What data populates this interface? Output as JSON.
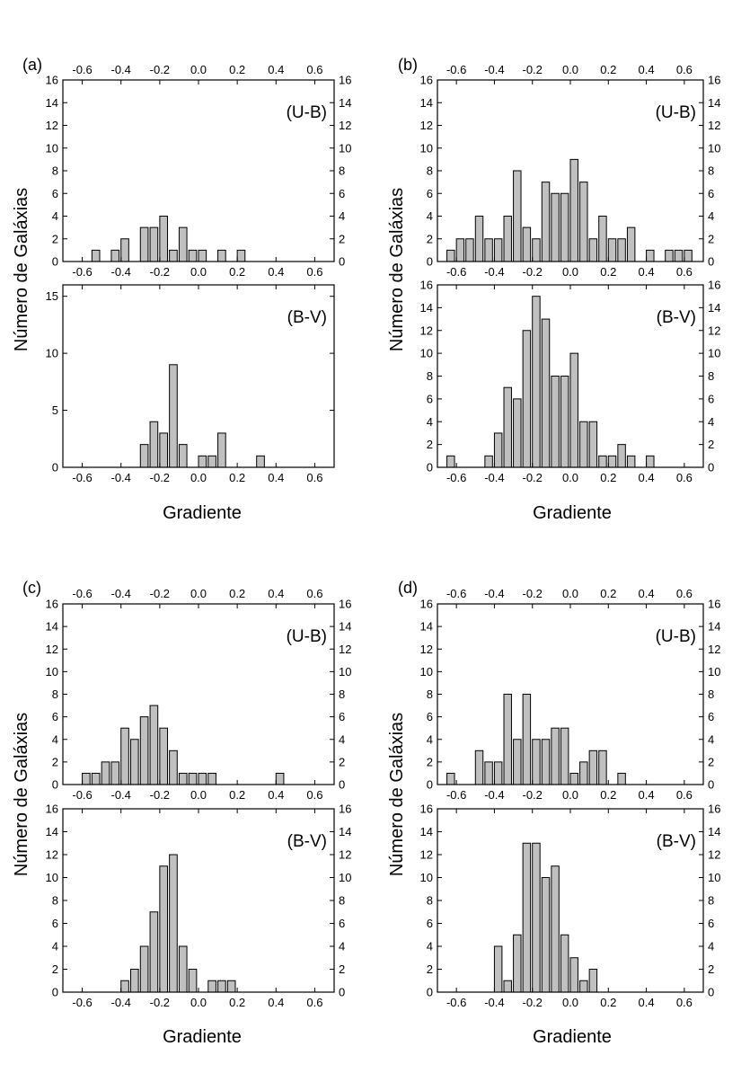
{
  "chart_data": [
    {
      "panel": "(a)",
      "type": "bar",
      "ylabel": "Número de Galáxias",
      "xlabel": "Gradiente",
      "subplots": [
        {
          "label": "(U-B)",
          "ylim": [
            0,
            16
          ],
          "yticks": [
            0,
            2,
            4,
            6,
            8,
            10,
            12,
            14,
            16
          ],
          "bars": [
            {
              "x": -0.53,
              "v": 1
            },
            {
              "x": -0.43,
              "v": 1
            },
            {
              "x": -0.38,
              "v": 2
            },
            {
              "x": -0.28,
              "v": 3
            },
            {
              "x": -0.23,
              "v": 3
            },
            {
              "x": -0.18,
              "v": 4
            },
            {
              "x": -0.13,
              "v": 1
            },
            {
              "x": -0.08,
              "v": 3
            },
            {
              "x": -0.03,
              "v": 1
            },
            {
              "x": 0.02,
              "v": 1
            },
            {
              "x": 0.12,
              "v": 1
            },
            {
              "x": 0.22,
              "v": 1
            }
          ]
        },
        {
          "label": "(B-V)",
          "ylim": [
            0,
            16
          ],
          "yticks": [
            0,
            5,
            10,
            15
          ],
          "bars": [
            {
              "x": -0.28,
              "v": 2
            },
            {
              "x": -0.23,
              "v": 4
            },
            {
              "x": -0.18,
              "v": 3
            },
            {
              "x": -0.13,
              "v": 9
            },
            {
              "x": -0.08,
              "v": 2
            },
            {
              "x": 0.02,
              "v": 1
            },
            {
              "x": 0.07,
              "v": 1
            },
            {
              "x": 0.12,
              "v": 3
            },
            {
              "x": 0.32,
              "v": 1
            }
          ]
        }
      ]
    },
    {
      "panel": "(b)",
      "type": "bar",
      "ylabel": "Número de Galáxias",
      "xlabel": "Gradiente",
      "subplots": [
        {
          "label": "(U-B)",
          "ylim": [
            0,
            16
          ],
          "yticks": [
            0,
            2,
            4,
            6,
            8,
            10,
            12,
            14,
            16
          ],
          "bars": [
            {
              "x": -0.63,
              "v": 1
            },
            {
              "x": -0.58,
              "v": 2
            },
            {
              "x": -0.53,
              "v": 2
            },
            {
              "x": -0.48,
              "v": 4
            },
            {
              "x": -0.43,
              "v": 2
            },
            {
              "x": -0.38,
              "v": 2
            },
            {
              "x": -0.33,
              "v": 4
            },
            {
              "x": -0.28,
              "v": 8
            },
            {
              "x": -0.23,
              "v": 3
            },
            {
              "x": -0.18,
              "v": 2
            },
            {
              "x": -0.13,
              "v": 7
            },
            {
              "x": -0.08,
              "v": 6
            },
            {
              "x": -0.03,
              "v": 6
            },
            {
              "x": 0.02,
              "v": 9
            },
            {
              "x": 0.07,
              "v": 7
            },
            {
              "x": 0.12,
              "v": 2
            },
            {
              "x": 0.17,
              "v": 4
            },
            {
              "x": 0.22,
              "v": 2
            },
            {
              "x": 0.27,
              "v": 2
            },
            {
              "x": 0.32,
              "v": 3
            },
            {
              "x": 0.42,
              "v": 1
            },
            {
              "x": 0.52,
              "v": 1
            },
            {
              "x": 0.57,
              "v": 1
            },
            {
              "x": 0.62,
              "v": 1
            }
          ]
        },
        {
          "label": "(B-V)",
          "ylim": [
            0,
            16
          ],
          "yticks": [
            0,
            2,
            4,
            6,
            8,
            10,
            12,
            14,
            16
          ],
          "bars": [
            {
              "x": -0.63,
              "v": 1
            },
            {
              "x": -0.43,
              "v": 1
            },
            {
              "x": -0.38,
              "v": 3
            },
            {
              "x": -0.33,
              "v": 7
            },
            {
              "x": -0.28,
              "v": 6
            },
            {
              "x": -0.23,
              "v": 12
            },
            {
              "x": -0.18,
              "v": 15
            },
            {
              "x": -0.13,
              "v": 13
            },
            {
              "x": -0.08,
              "v": 8
            },
            {
              "x": -0.03,
              "v": 8
            },
            {
              "x": 0.02,
              "v": 10
            },
            {
              "x": 0.07,
              "v": 4
            },
            {
              "x": 0.12,
              "v": 4
            },
            {
              "x": 0.17,
              "v": 1
            },
            {
              "x": 0.22,
              "v": 1
            },
            {
              "x": 0.27,
              "v": 2
            },
            {
              "x": 0.32,
              "v": 1
            },
            {
              "x": 0.42,
              "v": 1
            }
          ]
        }
      ]
    },
    {
      "panel": "(c)",
      "type": "bar",
      "ylabel": "Número de Galáxias",
      "xlabel": "Gradiente",
      "subplots": [
        {
          "label": "(U-B)",
          "ylim": [
            0,
            16
          ],
          "yticks": [
            0,
            2,
            4,
            6,
            8,
            10,
            12,
            14,
            16
          ],
          "bars": [
            {
              "x": -0.58,
              "v": 1
            },
            {
              "x": -0.53,
              "v": 1
            },
            {
              "x": -0.48,
              "v": 2
            },
            {
              "x": -0.43,
              "v": 2
            },
            {
              "x": -0.38,
              "v": 5
            },
            {
              "x": -0.33,
              "v": 4
            },
            {
              "x": -0.28,
              "v": 6
            },
            {
              "x": -0.23,
              "v": 7
            },
            {
              "x": -0.18,
              "v": 5
            },
            {
              "x": -0.13,
              "v": 3
            },
            {
              "x": -0.08,
              "v": 1
            },
            {
              "x": -0.03,
              "v": 1
            },
            {
              "x": 0.02,
              "v": 1
            },
            {
              "x": 0.07,
              "v": 1
            },
            {
              "x": 0.42,
              "v": 1
            }
          ]
        },
        {
          "label": "(B-V)",
          "ylim": [
            0,
            16
          ],
          "yticks": [
            0,
            2,
            4,
            6,
            8,
            10,
            12,
            14,
            16
          ],
          "bars": [
            {
              "x": -0.38,
              "v": 1
            },
            {
              "x": -0.33,
              "v": 2
            },
            {
              "x": -0.28,
              "v": 4
            },
            {
              "x": -0.23,
              "v": 7
            },
            {
              "x": -0.18,
              "v": 11
            },
            {
              "x": -0.13,
              "v": 12
            },
            {
              "x": -0.08,
              "v": 4
            },
            {
              "x": -0.03,
              "v": 2
            },
            {
              "x": 0.07,
              "v": 1
            },
            {
              "x": 0.12,
              "v": 1
            },
            {
              "x": 0.17,
              "v": 1
            }
          ]
        }
      ]
    },
    {
      "panel": "(d)",
      "type": "bar",
      "ylabel": "Número de Galáxias",
      "xlabel": "Gradiente",
      "subplots": [
        {
          "label": "(U-B)",
          "ylim": [
            0,
            16
          ],
          "yticks": [
            0,
            2,
            4,
            6,
            8,
            10,
            12,
            14,
            16
          ],
          "bars": [
            {
              "x": -0.63,
              "v": 1
            },
            {
              "x": -0.48,
              "v": 3
            },
            {
              "x": -0.43,
              "v": 2
            },
            {
              "x": -0.38,
              "v": 2
            },
            {
              "x": -0.33,
              "v": 8
            },
            {
              "x": -0.28,
              "v": 4
            },
            {
              "x": -0.23,
              "v": 8
            },
            {
              "x": -0.18,
              "v": 4
            },
            {
              "x": -0.13,
              "v": 4
            },
            {
              "x": -0.08,
              "v": 5
            },
            {
              "x": -0.03,
              "v": 5
            },
            {
              "x": 0.02,
              "v": 1
            },
            {
              "x": 0.07,
              "v": 2
            },
            {
              "x": 0.12,
              "v": 3
            },
            {
              "x": 0.17,
              "v": 3
            },
            {
              "x": 0.27,
              "v": 1
            }
          ]
        },
        {
          "label": "(B-V)",
          "ylim": [
            0,
            16
          ],
          "yticks": [
            0,
            2,
            4,
            6,
            8,
            10,
            12,
            14,
            16
          ],
          "bars": [
            {
              "x": -0.38,
              "v": 4
            },
            {
              "x": -0.33,
              "v": 1
            },
            {
              "x": -0.28,
              "v": 5
            },
            {
              "x": -0.23,
              "v": 13
            },
            {
              "x": -0.18,
              "v": 13
            },
            {
              "x": -0.13,
              "v": 10
            },
            {
              "x": -0.08,
              "v": 11
            },
            {
              "x": -0.03,
              "v": 5
            },
            {
              "x": 0.02,
              "v": 3
            },
            {
              "x": 0.07,
              "v": 1
            },
            {
              "x": 0.12,
              "v": 2
            }
          ]
        }
      ]
    }
  ],
  "xaxis": {
    "xlim": [
      -0.7,
      0.7
    ],
    "ticks": [
      -0.6,
      -0.4,
      -0.2,
      0.0,
      0.2,
      0.4,
      0.6
    ],
    "tick_labels": [
      "-0.6",
      "-0.4",
      "-0.2",
      "0.0",
      "0.2",
      "0.4",
      "0.6"
    ],
    "bar_width": 0.04
  },
  "colors": {
    "bar_fill": "#c0c0c0",
    "bar_stroke": "#000000",
    "frame": "#000000"
  }
}
